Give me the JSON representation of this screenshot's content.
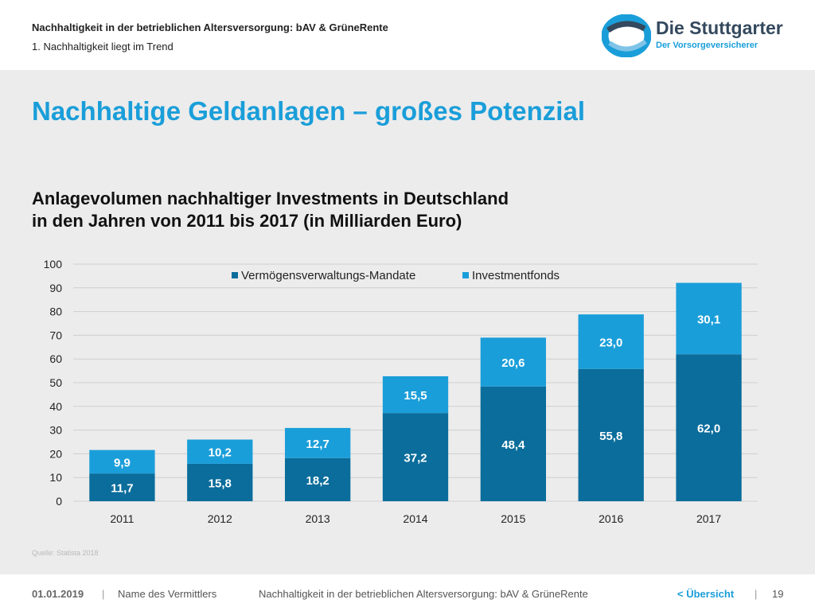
{
  "header": {
    "title": "Nachhaltigkeit in der betrieblichen Altersversorgung: bAV & GrüneRente",
    "subtitle": "1. Nachhaltigkeit liegt im Trend"
  },
  "logo": {
    "name": "Die Stuttgarter",
    "tagline": "Der Vorsorgeversicherer",
    "icon": "swirl-logo-icon"
  },
  "slide": {
    "title": "Nachhaltige Geldanlagen – großes Potenzial",
    "chart_heading_line1": "Anlagevolumen nachhaltiger Investments in Deutschland",
    "chart_heading_line2": "in den Jahren von 2011 bis 2017 (in Milliarden Euro)",
    "source": "Quelle: Statista 2018"
  },
  "colors": {
    "accent": "#1a9ed9",
    "series_dark": "#0a6d9b",
    "series_light": "#1a9ed9"
  },
  "chart_data": {
    "type": "bar",
    "stacked": true,
    "categories": [
      "2011",
      "2012",
      "2013",
      "2014",
      "2015",
      "2016",
      "2017"
    ],
    "series": [
      {
        "name": "Vermögensverwaltungs-Mandate",
        "values": [
          11.7,
          15.8,
          18.2,
          37.2,
          48.4,
          55.8,
          62.0
        ],
        "labels": [
          "11,7",
          "15,8",
          "18,2",
          "37,2",
          "48,4",
          "55,8",
          "62,0"
        ],
        "color": "#0a6d9b"
      },
      {
        "name": "Investmentfonds",
        "values": [
          9.9,
          10.2,
          12.7,
          15.5,
          20.6,
          23.0,
          30.1
        ],
        "labels": [
          "9,9",
          "10,2",
          "12,7",
          "15,5",
          "20,6",
          "23,0",
          "30,1"
        ],
        "color": "#1a9ed9"
      }
    ],
    "yticks": [
      "0",
      "10",
      "20",
      "30",
      "40",
      "50",
      "60",
      "70",
      "80",
      "90",
      "100"
    ],
    "ylim": [
      0,
      100
    ],
    "grid": true,
    "legend": "top"
  },
  "footer": {
    "date": "01.01.2019",
    "separator": "|",
    "agent": "Name des Vermittlers",
    "topic": "Nachhaltigkeit in der betrieblichen Altersversorgung: bAV & GrüneRente",
    "nav": "< Übersicht",
    "page": "19"
  }
}
